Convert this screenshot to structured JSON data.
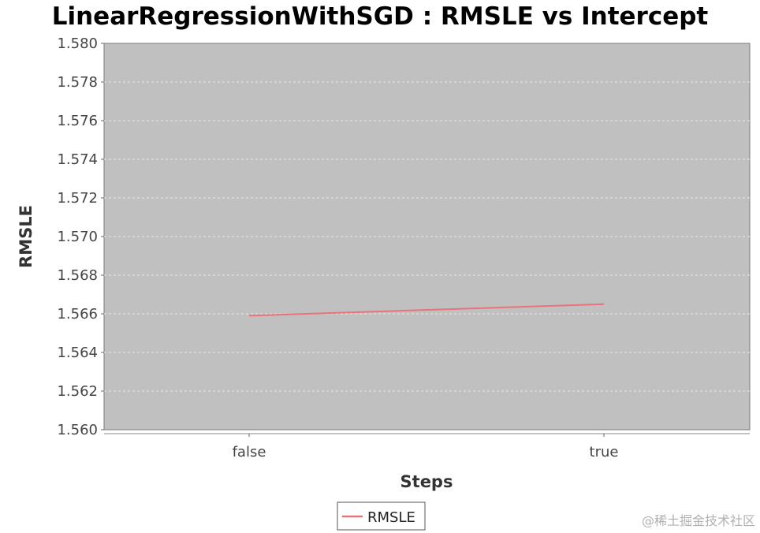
{
  "chart_data": {
    "type": "line",
    "title": "LinearRegressionWithSGD : RMSLE vs Intercept",
    "xlabel": "Steps",
    "ylabel": "RMSLE",
    "categories": [
      "false",
      "true"
    ],
    "series": [
      {
        "name": "RMSLE",
        "values": [
          1.5659,
          1.5665
        ]
      }
    ],
    "ylim": [
      1.56,
      1.58
    ],
    "yticks": [
      "1.560",
      "1.562",
      "1.564",
      "1.566",
      "1.568",
      "1.570",
      "1.572",
      "1.574",
      "1.576",
      "1.578",
      "1.580"
    ],
    "grid": true,
    "legend": "bottom-center",
    "colors": {
      "series": "#e8737a",
      "plot_bg": "#c0c0c0",
      "grid": "#e8e8e8"
    }
  },
  "watermark": "@稀土掘金技术社区"
}
